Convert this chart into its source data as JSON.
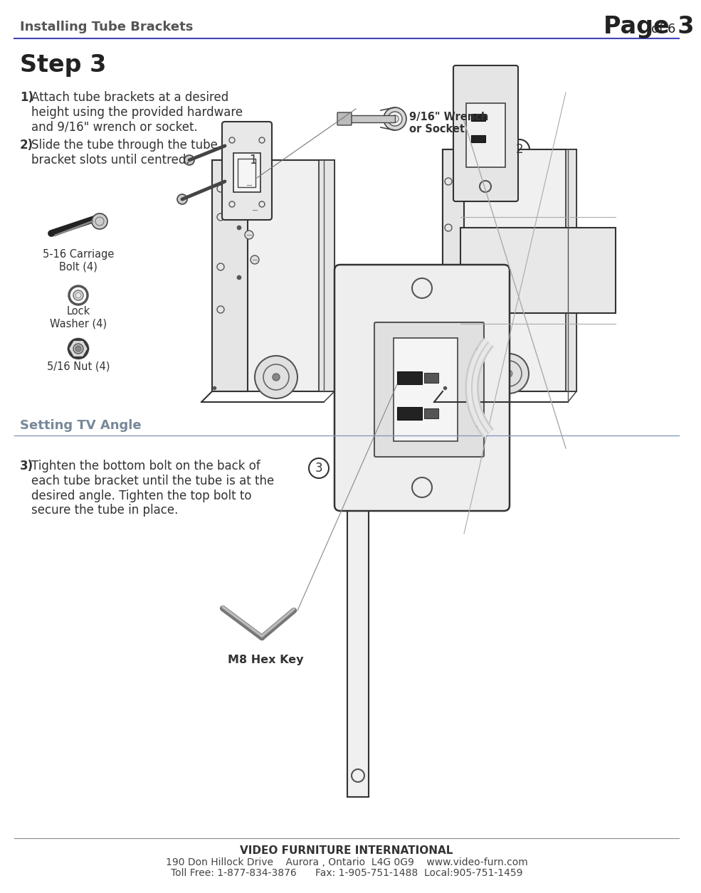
{
  "bg_color": "#ffffff",
  "header_text_left": "Installing Tube Brackets",
  "header_text_right_large": "Page 3",
  "header_text_right_small": " of 6",
  "header_line_color": "#4444bb",
  "header_font_color": "#555555",
  "step3_title": "Step 3",
  "step3_instruction1_bold": "1)",
  "step3_instruction1": " Attach tube brackets at a desired\nheight using the provided hardware\nand 9/16\" wrench or socket.",
  "step3_instruction2_bold": "2)",
  "step3_instruction2": " Slide the tube through the tube\nbracket slots until centred.",
  "hardware_label1": "5-16 Carriage\nBolt (4)",
  "hardware_label2": "Lock\nWasher (4)",
  "hardware_label3": "5/16 Nut (4)",
  "wrench_label": "9/16\" Wrench\nor Socket",
  "section2_title": "Setting TV Angle",
  "section2_line_color": "#8899bb",
  "step3_text_bold": "3)",
  "step3_text": " Tighten the bottom bolt on the back of\neach tube bracket until the tube is at the\ndesired angle. Tighten the top bolt to\nsecure the tube in place.",
  "hex_key_label": "M8 Hex Key",
  "footer_company": "VIDEO FURNITURE INTERNATIONAL",
  "footer_address": "190 Don Hillock Drive    Aurora , Ontario  L4G 0G9    www.video-furn.com",
  "footer_contact": "Toll Free: 1-877-834-3876      Fax: 1-905-751-1488  Local:905-751-1459"
}
